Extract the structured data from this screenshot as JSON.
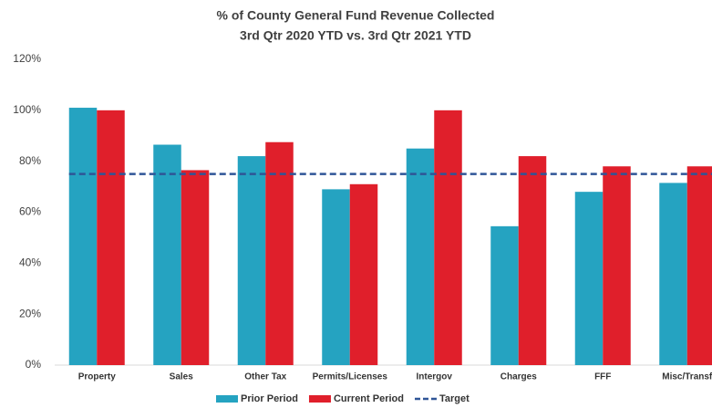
{
  "chart_data": {
    "type": "bar",
    "title": "% of County General Fund Revenue Collected",
    "subtitle": "3rd Qtr 2020 YTD vs. 3rd Qtr 2021 YTD",
    "categories": [
      "Property",
      "Sales",
      "Other Tax",
      "Permits/Licenses",
      "Intergov",
      "Charges",
      "FFF",
      "Misc/Transf"
    ],
    "series": [
      {
        "name": "Prior Period",
        "color": "#25a3c1",
        "values": [
          101,
          86.5,
          82,
          69,
          85,
          54.5,
          68,
          71.5
        ]
      },
      {
        "name": "Current Period",
        "color": "#e01f2b",
        "values": [
          100,
          76.5,
          87.5,
          71,
          100,
          82,
          78,
          78
        ]
      }
    ],
    "target": {
      "name": "Target",
      "value": 75,
      "color": "#2f5597"
    },
    "ylim": [
      0,
      120
    ],
    "yticks": [
      {
        "value": 0,
        "label": "0%"
      },
      {
        "value": 20,
        "label": "20%"
      },
      {
        "value": 40,
        "label": "40%"
      },
      {
        "value": 60,
        "label": "60%"
      },
      {
        "value": 80,
        "label": "80%"
      },
      {
        "value": 100,
        "label": "100%"
      },
      {
        "value": 120,
        "label": "120%"
      }
    ],
    "grid": false,
    "legend": "bottom"
  }
}
